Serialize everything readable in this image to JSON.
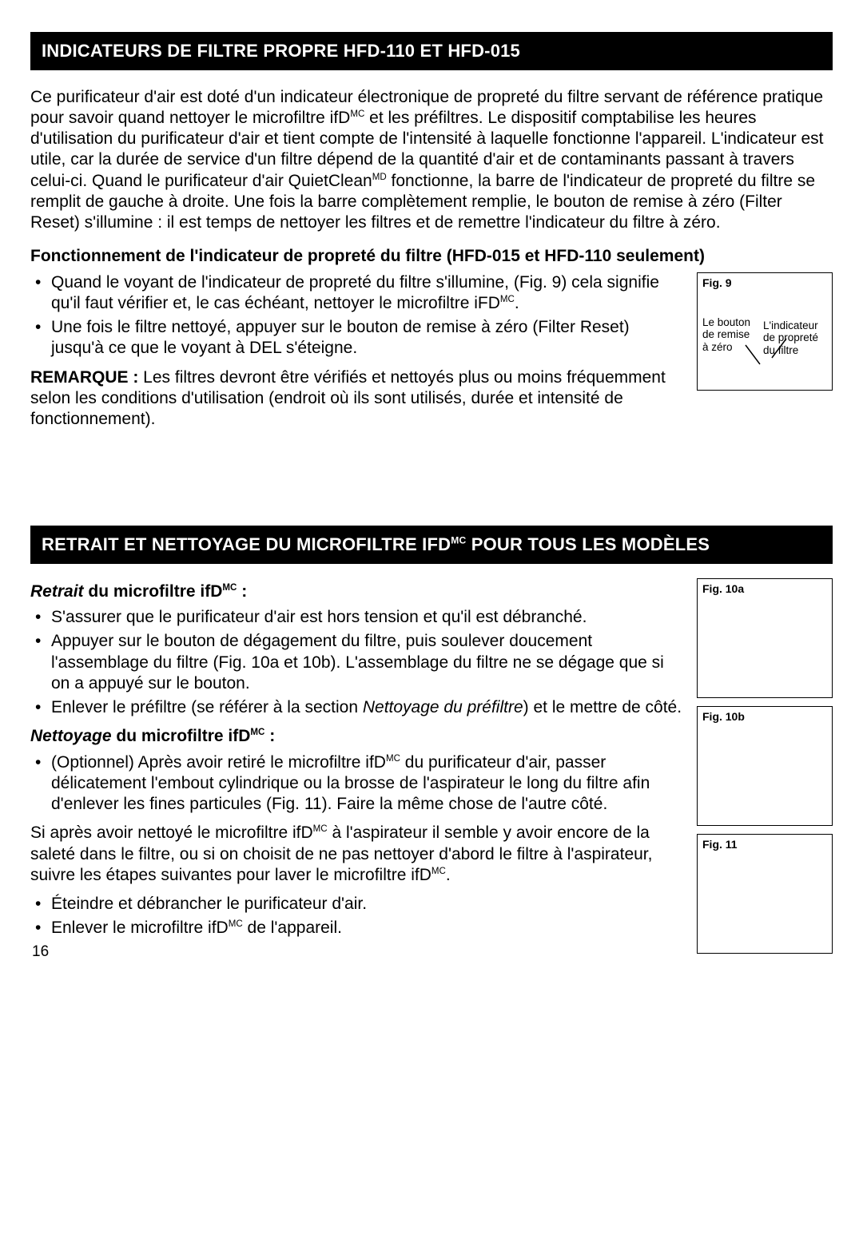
{
  "section1": {
    "title": "INDICATEURS DE FILTRE PROPRE HFD-110 ET HFD-015",
    "intro_html": "Ce purificateur d'air est doté d'un indicateur électronique de propreté du filtre servant de référence pratique pour savoir quand nettoyer le microfiltre ifD<span class='sup'>MC</span> et les préfiltres. Le dispositif comptabilise les heures d'utilisation du purificateur d'air et tient compte de l'intensité à laquelle fonctionne l'appareil. L'indicateur est utile, car la durée de service d'un filtre dépend de la quantité d'air et de contaminants passant à travers celui-ci. Quand le purificateur d'air QuietClean<span class='sup'>MD</span> fonctionne, la barre de l'indicateur de propreté du filtre se remplit de gauche à droite. Une fois la barre complètement remplie, le bouton de remise à zéro (Filter Reset) s'illumine : il est temps de nettoyer les filtres et de remettre l'indicateur du filtre à zéro.",
    "subhead": "Fonctionnement de l'indicateur de propreté du filtre (HFD-015 et HFD-110 seulement)",
    "bullets": [
      "Quand le voyant de l'indicateur de propreté du filtre s'illumine,  (Fig. 9) cela signifie qu'il faut vérifier et, le cas échéant, nettoyer le microfiltre iFD<span class='sup'>MC</span>.",
      "Une fois le filtre nettoyé, appuyer sur le bouton de remise à zéro (Filter Reset) jusqu'à ce que le voyant à DEL s'éteigne."
    ],
    "remark_html": "<b>REMARQUE :</b> Les filtres devront être vérifiés et nettoyés plus ou moins fréquemment selon les conditions d'utilisation (endroit où ils sont utilisés, durée et intensité de fonctionnement).",
    "fig9": {
      "label": "Fig. 9",
      "left_caption": "Le bouton de remise à zéro",
      "right_caption": "L'indicateur de propreté du filtre"
    }
  },
  "section2": {
    "title_html": "RETRAIT ET NETTOYAGE DU MICROFILTRE IFD<span class='sup'>MC</span> POUR TOUS LES MODÈLES",
    "retrait_head_html": "<span class='italic'>Retrait</span> du microfiltre ifD<span class='sup'>MC</span> :",
    "retrait_bullets": [
      "S'assurer que le purificateur d'air est hors tension et qu'il est débranché.",
      "Appuyer sur le bouton de dégagement du filtre, puis soulever doucement l'assemblage du filtre (Fig. 10a et 10b). L'assemblage du filtre ne se dégage que si on a appuyé sur le bouton.",
      "Enlever le préfiltre (se référer à la section <span class='italic'>Nettoyage du préfiltre</span>) et le mettre de côté."
    ],
    "nettoyage_head_html": "<span class='italic'>Nettoyage</span> du microfiltre ifD<span class='sup'>MC</span> :",
    "nettoyage_bullets": [
      "(Optionnel) Après avoir retiré le microfiltre ifD<span class='sup'>MC</span> du purificateur d'air, passer délicatement l'embout cylindrique ou la brosse de l'aspirateur le long du filtre afin d'enlever les fines particules (Fig. 11). Faire la même chose de l'autre côté."
    ],
    "mid_para_html": "Si après avoir nettoyé le microfiltre ifD<span class='sup'>MC</span> à l'aspirateur il semble y avoir encore de la saleté dans le filtre, ou si on choisit de ne pas nettoyer d'abord le filtre à l'aspirateur, suivre les étapes suivantes pour laver le microfiltre ifD<span class='sup'>MC</span>.",
    "final_bullets": [
      "Éteindre et débrancher le purificateur d'air.",
      "Enlever le microfiltre ifD<span class='sup'>MC</span> de l'appareil."
    ],
    "fig10a_label": "Fig. 10a",
    "fig10b_label": "Fig. 10b",
    "fig11_label": "Fig. 11"
  },
  "page_number": "16",
  "figbox_heights": {
    "fig9": 148,
    "fig10a": 150,
    "fig10b": 150,
    "fig11": 150
  },
  "colors": {
    "bar_bg": "#000000",
    "bar_fg": "#ffffff",
    "text": "#000000",
    "page_bg": "#ffffff",
    "border": "#000000"
  }
}
